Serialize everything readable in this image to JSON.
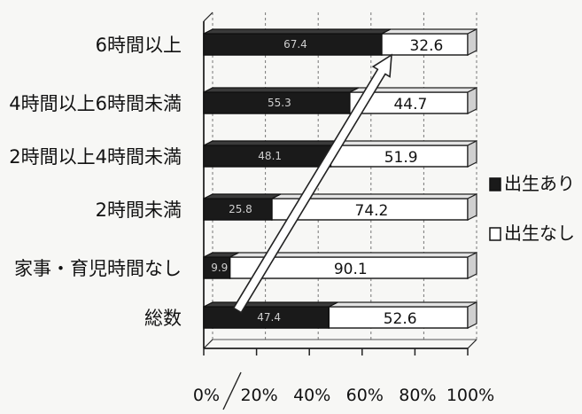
{
  "chart_data": {
    "type": "bar",
    "orientation": "horizontal",
    "stacked": "percent",
    "categories": [
      "6時間以上",
      "4時間以上6時間未満",
      "2時間以上4時間未満",
      "2時間未満",
      "家事・育児時間なし",
      "総数"
    ],
    "series": [
      {
        "name": "出生あり",
        "values": [
          67.4,
          55.3,
          48.1,
          25.8,
          9.9,
          47.4
        ],
        "color": "#1a1a1a"
      },
      {
        "name": "出生なし",
        "values": [
          32.6,
          44.7,
          51.9,
          74.2,
          90.1,
          52.6
        ],
        "color": "#ffffff"
      }
    ],
    "xlim": [
      0,
      100
    ],
    "x_ticks": [
      "0%",
      "20%",
      "40%",
      "60%",
      "80%",
      "100%"
    ],
    "grid": "vertical dashed",
    "legend": "right",
    "annotation": "upward arrow from 総数 toward 6時間以上"
  }
}
